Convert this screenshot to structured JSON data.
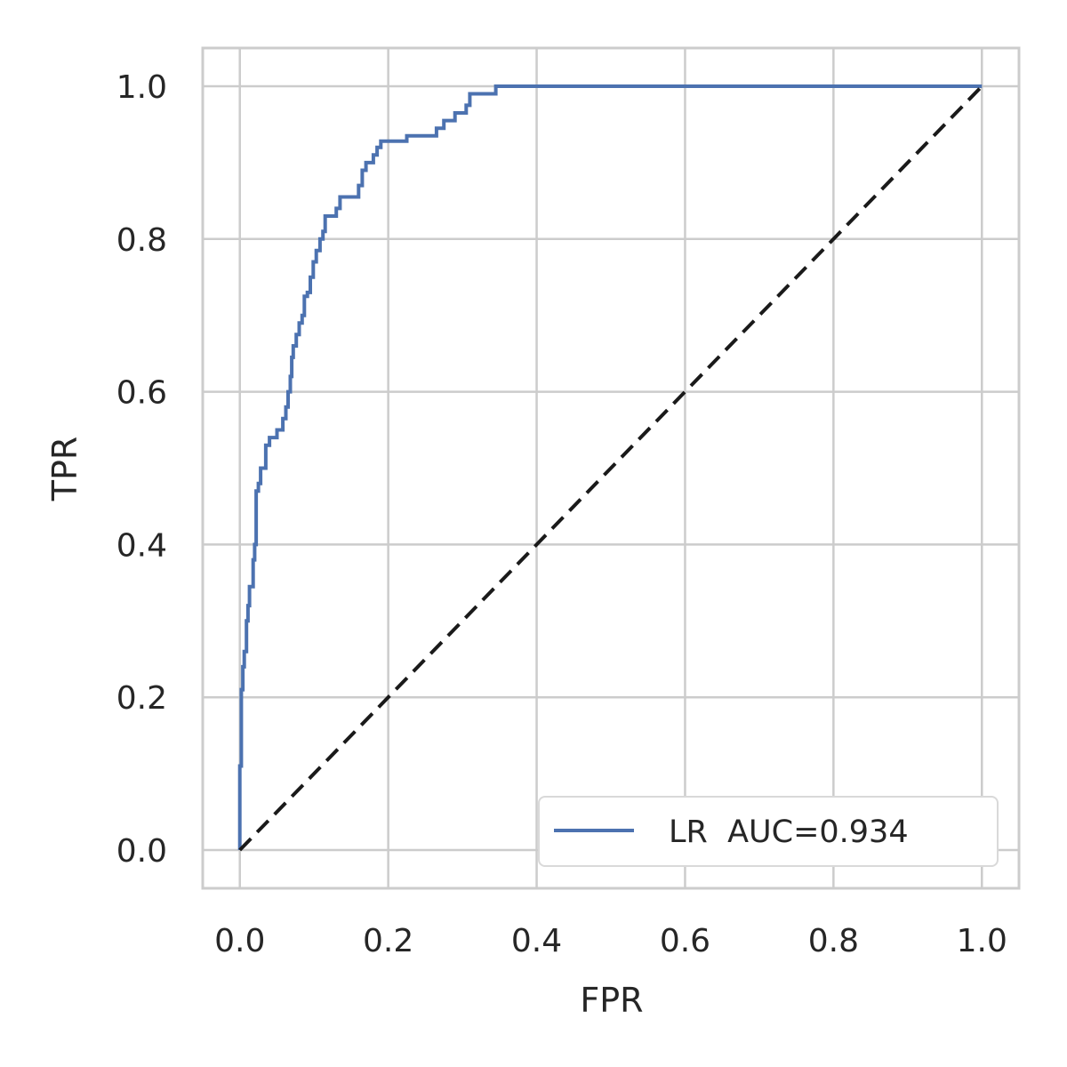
{
  "chart_data": {
    "type": "line",
    "xlabel": "FPR",
    "ylabel": "TPR",
    "xlim": [
      -0.05,
      1.05
    ],
    "ylim": [
      -0.05,
      1.05
    ],
    "x_ticks": [
      "0.0",
      "0.2",
      "0.4",
      "0.6",
      "0.8",
      "1.0"
    ],
    "y_ticks": [
      "0.0",
      "0.2",
      "0.4",
      "0.6",
      "0.8",
      "1.0"
    ],
    "grid": true,
    "legend_position": "lower-right",
    "legend": {
      "label": "LR  AUC=0.934"
    },
    "series": [
      {
        "name": "LR  AUC=0.934",
        "color": "#4c72b0",
        "style": "solid",
        "points": [
          [
            0.0,
            0.0
          ],
          [
            0.0,
            0.11
          ],
          [
            0.002,
            0.11
          ],
          [
            0.002,
            0.21
          ],
          [
            0.004,
            0.21
          ],
          [
            0.004,
            0.24
          ],
          [
            0.006,
            0.24
          ],
          [
            0.006,
            0.26
          ],
          [
            0.009,
            0.26
          ],
          [
            0.009,
            0.3
          ],
          [
            0.011,
            0.3
          ],
          [
            0.011,
            0.32
          ],
          [
            0.013,
            0.32
          ],
          [
            0.013,
            0.345
          ],
          [
            0.018,
            0.345
          ],
          [
            0.018,
            0.38
          ],
          [
            0.02,
            0.38
          ],
          [
            0.02,
            0.4
          ],
          [
            0.022,
            0.4
          ],
          [
            0.022,
            0.47
          ],
          [
            0.025,
            0.47
          ],
          [
            0.025,
            0.48
          ],
          [
            0.028,
            0.48
          ],
          [
            0.028,
            0.5
          ],
          [
            0.035,
            0.5
          ],
          [
            0.035,
            0.53
          ],
          [
            0.04,
            0.53
          ],
          [
            0.04,
            0.54
          ],
          [
            0.05,
            0.54
          ],
          [
            0.05,
            0.55
          ],
          [
            0.058,
            0.55
          ],
          [
            0.058,
            0.565
          ],
          [
            0.062,
            0.565
          ],
          [
            0.062,
            0.58
          ],
          [
            0.065,
            0.58
          ],
          [
            0.065,
            0.6
          ],
          [
            0.068,
            0.6
          ],
          [
            0.068,
            0.62
          ],
          [
            0.07,
            0.62
          ],
          [
            0.07,
            0.645
          ],
          [
            0.072,
            0.645
          ],
          [
            0.072,
            0.66
          ],
          [
            0.076,
            0.66
          ],
          [
            0.076,
            0.675
          ],
          [
            0.08,
            0.675
          ],
          [
            0.08,
            0.69
          ],
          [
            0.084,
            0.69
          ],
          [
            0.084,
            0.7
          ],
          [
            0.087,
            0.7
          ],
          [
            0.087,
            0.725
          ],
          [
            0.091,
            0.725
          ],
          [
            0.091,
            0.73
          ],
          [
            0.095,
            0.73
          ],
          [
            0.095,
            0.75
          ],
          [
            0.099,
            0.75
          ],
          [
            0.099,
            0.77
          ],
          [
            0.103,
            0.77
          ],
          [
            0.103,
            0.785
          ],
          [
            0.108,
            0.785
          ],
          [
            0.108,
            0.8
          ],
          [
            0.112,
            0.8
          ],
          [
            0.112,
            0.81
          ],
          [
            0.115,
            0.81
          ],
          [
            0.115,
            0.83
          ],
          [
            0.13,
            0.83
          ],
          [
            0.13,
            0.84
          ],
          [
            0.135,
            0.84
          ],
          [
            0.135,
            0.855
          ],
          [
            0.16,
            0.855
          ],
          [
            0.16,
            0.87
          ],
          [
            0.165,
            0.87
          ],
          [
            0.165,
            0.89
          ],
          [
            0.17,
            0.89
          ],
          [
            0.17,
            0.9
          ],
          [
            0.18,
            0.9
          ],
          [
            0.18,
            0.91
          ],
          [
            0.185,
            0.91
          ],
          [
            0.185,
            0.92
          ],
          [
            0.19,
            0.92
          ],
          [
            0.19,
            0.928
          ],
          [
            0.225,
            0.928
          ],
          [
            0.225,
            0.935
          ],
          [
            0.265,
            0.935
          ],
          [
            0.265,
            0.945
          ],
          [
            0.275,
            0.945
          ],
          [
            0.275,
            0.955
          ],
          [
            0.29,
            0.955
          ],
          [
            0.29,
            0.965
          ],
          [
            0.305,
            0.965
          ],
          [
            0.305,
            0.975
          ],
          [
            0.31,
            0.975
          ],
          [
            0.31,
            0.99
          ],
          [
            0.345,
            0.99
          ],
          [
            0.345,
            1.0
          ],
          [
            1.0,
            1.0
          ]
        ]
      },
      {
        "name": "",
        "color": "#1a1a1a",
        "style": "dashed",
        "points": [
          [
            0.0,
            0.0
          ],
          [
            1.0,
            1.0
          ]
        ]
      }
    ]
  },
  "colors": {
    "grid": "#cccccc",
    "frame": "#cccccc",
    "text": "#262626",
    "roc_line": "#4c72b0",
    "diagonal": "#1a1a1a",
    "legend_border": "#d9d9d9"
  }
}
